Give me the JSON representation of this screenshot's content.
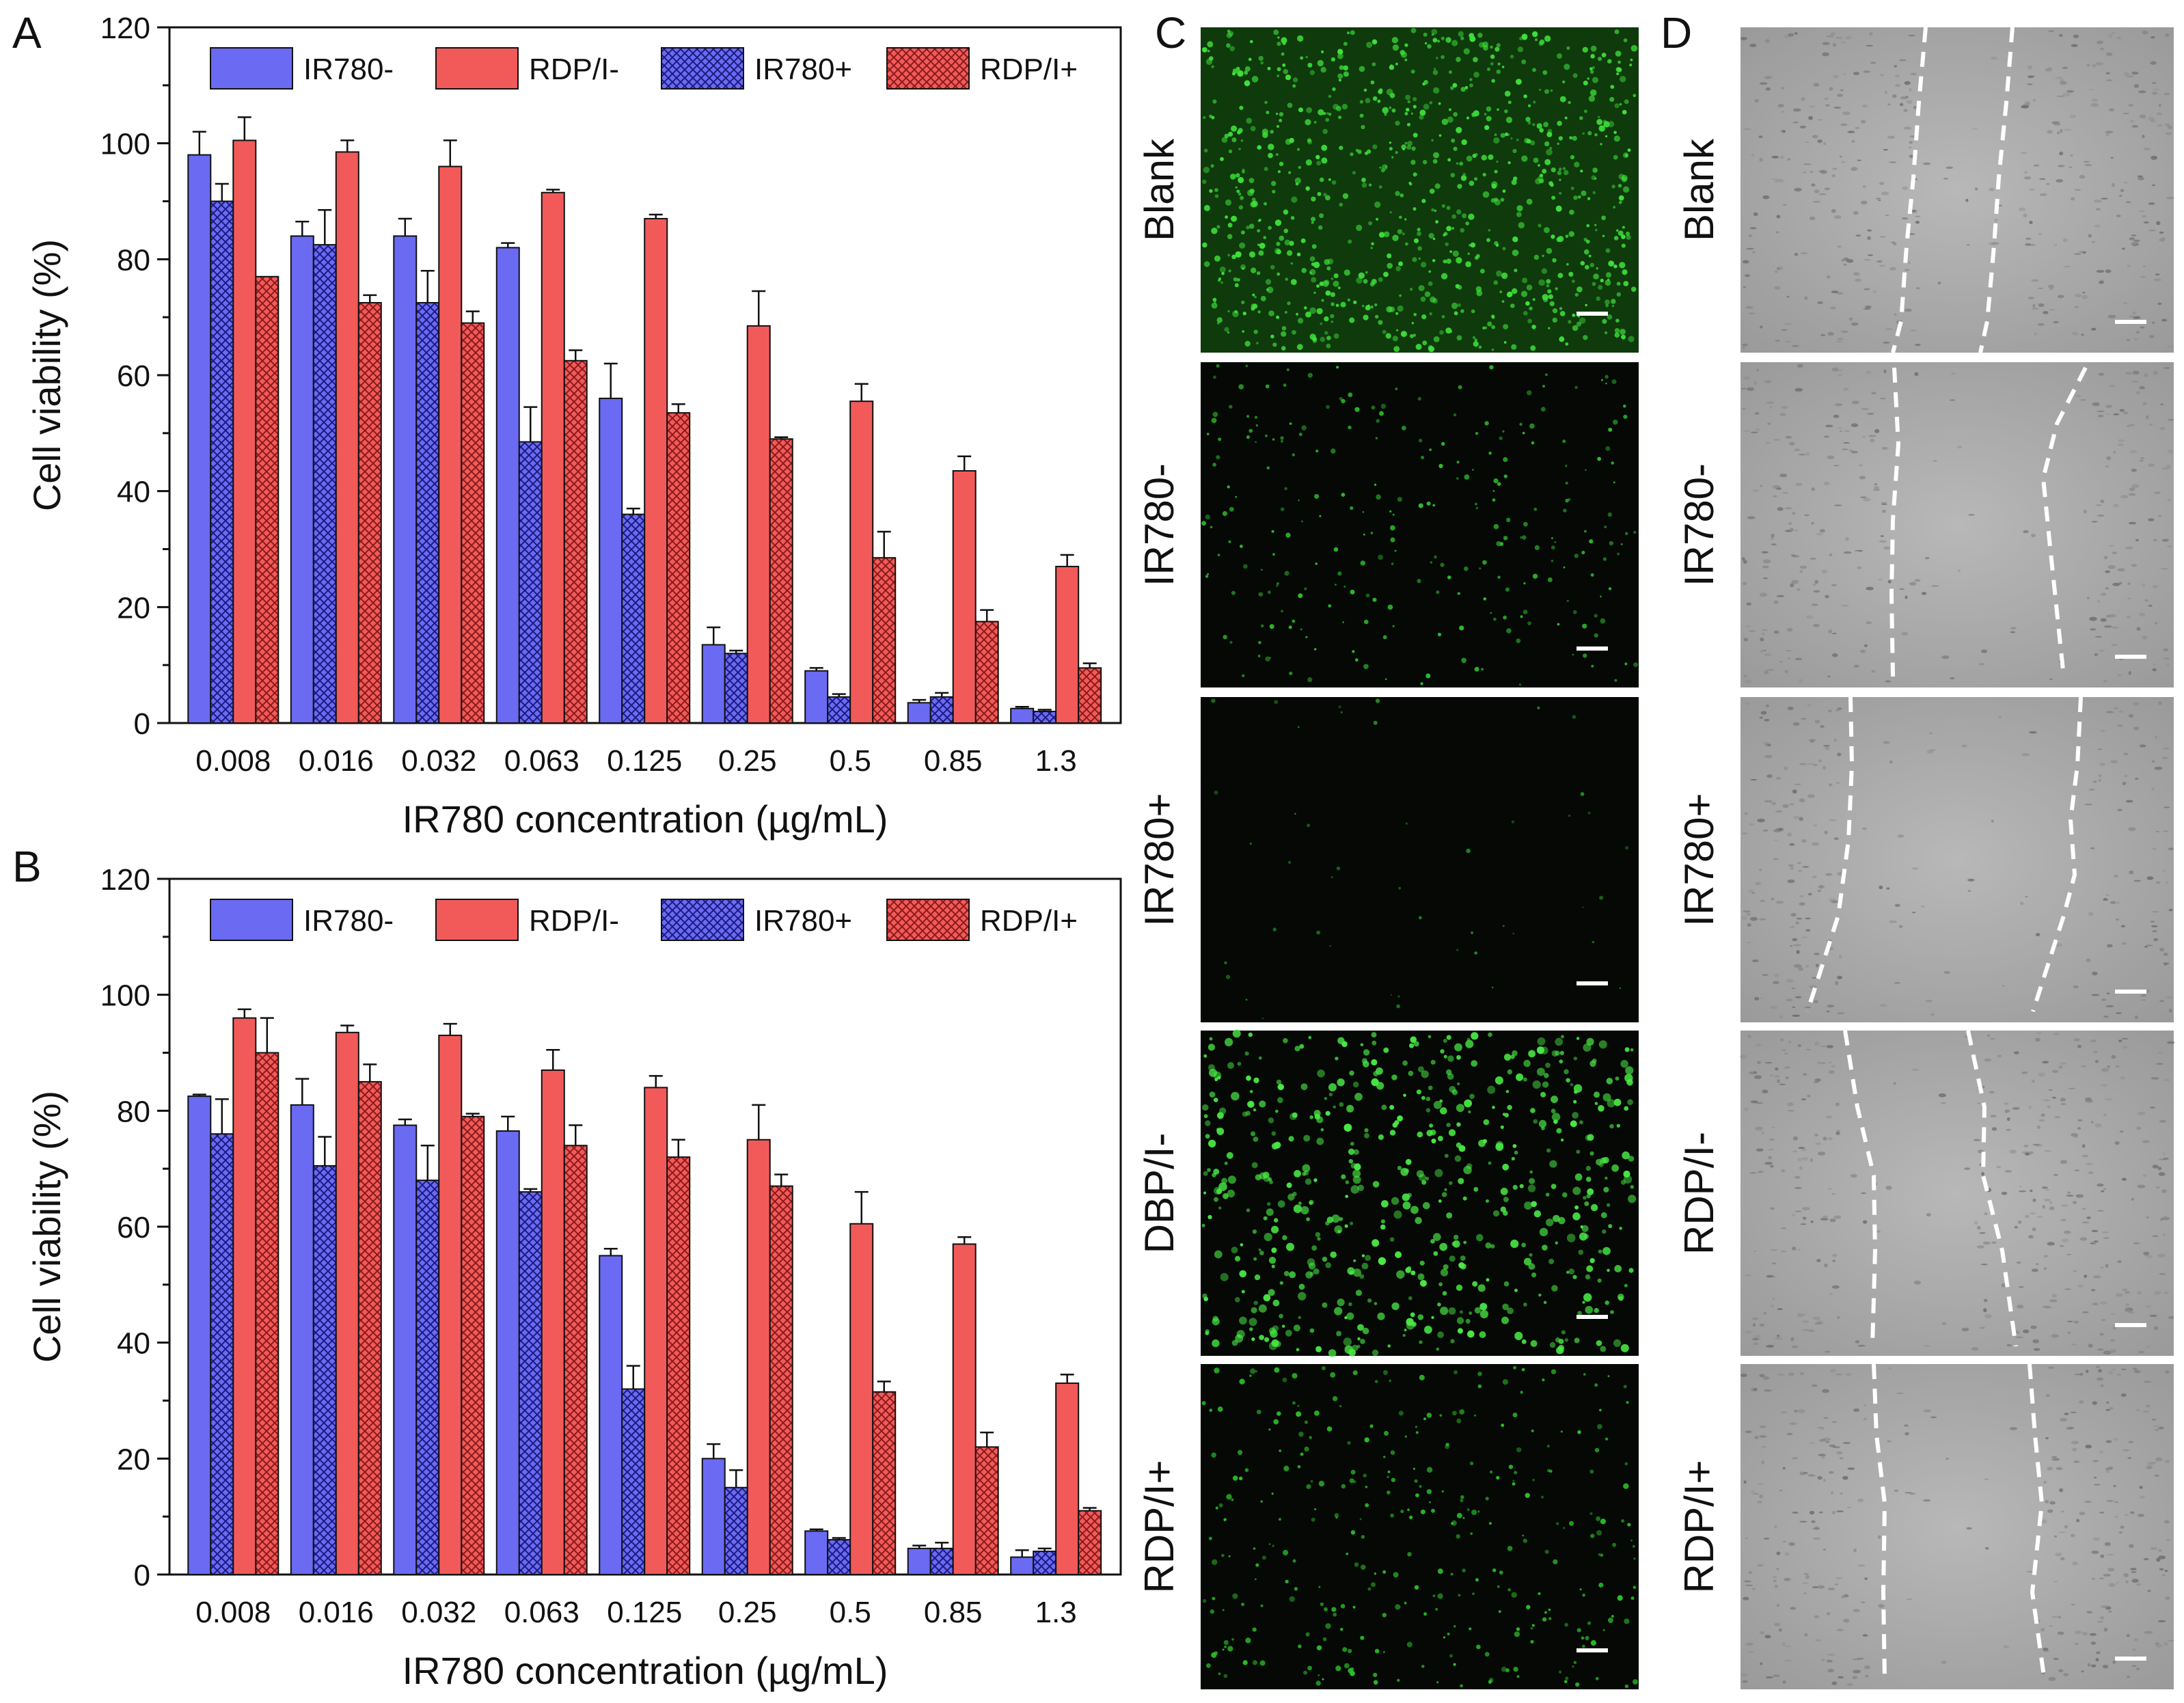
{
  "panel_letters": {
    "a": "A",
    "b": "B",
    "c": "C",
    "d": "D"
  },
  "colors": {
    "blue": "#6a6af2",
    "red": "#f25a5a",
    "blue_dark": "#2a2aa8",
    "red_dark": "#b02a2a"
  },
  "chart_data": [
    {
      "panel": "A",
      "type": "bar",
      "title": "",
      "xlabel": "IR780 concentration (µg/mL)",
      "ylabel": "Cell viability (%)",
      "ylim": [
        0,
        120
      ],
      "yticks": [
        "0",
        "20",
        "40",
        "60",
        "80",
        "100",
        "120"
      ],
      "categories": [
        "0.008",
        "0.016",
        "0.032",
        "0.063",
        "0.125",
        "0.25",
        "0.5",
        "0.85",
        "1.3"
      ],
      "legend": [
        "IR780-",
        "RDP/I-",
        "IR780+",
        "RDP/I+"
      ],
      "series": [
        {
          "name": "IR780-",
          "values": [
            98,
            84,
            84,
            82,
            56,
            13.5,
            9,
            3.5,
            2.5
          ],
          "errors": [
            4,
            2.5,
            3,
            0.8,
            6,
            3,
            0.5,
            0.5,
            0.3
          ]
        },
        {
          "name": "IR780+",
          "values": [
            90,
            82.5,
            72.5,
            48.5,
            36,
            12,
            4.5,
            4.5,
            2
          ],
          "errors": [
            3,
            6,
            5.5,
            6,
            1,
            0.5,
            0.5,
            0.7,
            0.3
          ]
        },
        {
          "name": "RDP/I-",
          "values": [
            100.5,
            98.5,
            96,
            91.5,
            87,
            68.5,
            55.5,
            43.5,
            27
          ],
          "errors": [
            4,
            2,
            4.5,
            0.5,
            0.7,
            6,
            3,
            2.5,
            2
          ]
        },
        {
          "name": "RDP/I+",
          "values": [
            77,
            72.5,
            69,
            62.5,
            53.5,
            49,
            28.5,
            17.5,
            9.5
          ],
          "errors": [
            0,
            1.3,
            2,
            1.8,
            1.5,
            0.3,
            4.5,
            2,
            0.8
          ]
        }
      ]
    },
    {
      "panel": "B",
      "type": "bar",
      "title": "",
      "xlabel": "IR780 concentration (µg/mL)",
      "ylabel": "Cell viability (%)",
      "ylim": [
        0,
        120
      ],
      "yticks": [
        "0",
        "20",
        "40",
        "60",
        "80",
        "100",
        "120"
      ],
      "categories": [
        "0.008",
        "0.016",
        "0.032",
        "0.063",
        "0.125",
        "0.25",
        "0.5",
        "0.85",
        "1.3"
      ],
      "legend": [
        "IR780-",
        "RDP/I-",
        "IR780+",
        "RDP/I+"
      ],
      "series": [
        {
          "name": "IR780-",
          "values": [
            82.5,
            81,
            77.5,
            76.5,
            55,
            20,
            7.5,
            4.5,
            3
          ],
          "errors": [
            0.3,
            4.5,
            1,
            2.5,
            1.2,
            2.5,
            0.3,
            0.5,
            1.2
          ]
        },
        {
          "name": "IR780+",
          "values": [
            76,
            70.5,
            68,
            66,
            32,
            15,
            6,
            4.5,
            4
          ],
          "errors": [
            6,
            5,
            6,
            0.5,
            4,
            3,
            0.3,
            1,
            0.5
          ]
        },
        {
          "name": "RDP/I-",
          "values": [
            96,
            93.5,
            93,
            87,
            84,
            75,
            60.5,
            57,
            33
          ],
          "errors": [
            1.5,
            1.2,
            2,
            3.5,
            2,
            6,
            5.5,
            1.2,
            1.5
          ]
        },
        {
          "name": "RDP/I+",
          "values": [
            90,
            85,
            79,
            74,
            72,
            67,
            31.5,
            22,
            11
          ],
          "errors": [
            6,
            3,
            0.5,
            3.5,
            3,
            2,
            1.8,
            2.5,
            0.5
          ]
        }
      ]
    }
  ],
  "panel_c": {
    "labels": [
      "Blank",
      "IR780-",
      "IR780+",
      "DBP/I-",
      "RDP/I+"
    ]
  },
  "panel_d": {
    "labels": [
      "Blank",
      "IR780-",
      "IR780+",
      "RDP/I-",
      "RDP/I+"
    ]
  }
}
